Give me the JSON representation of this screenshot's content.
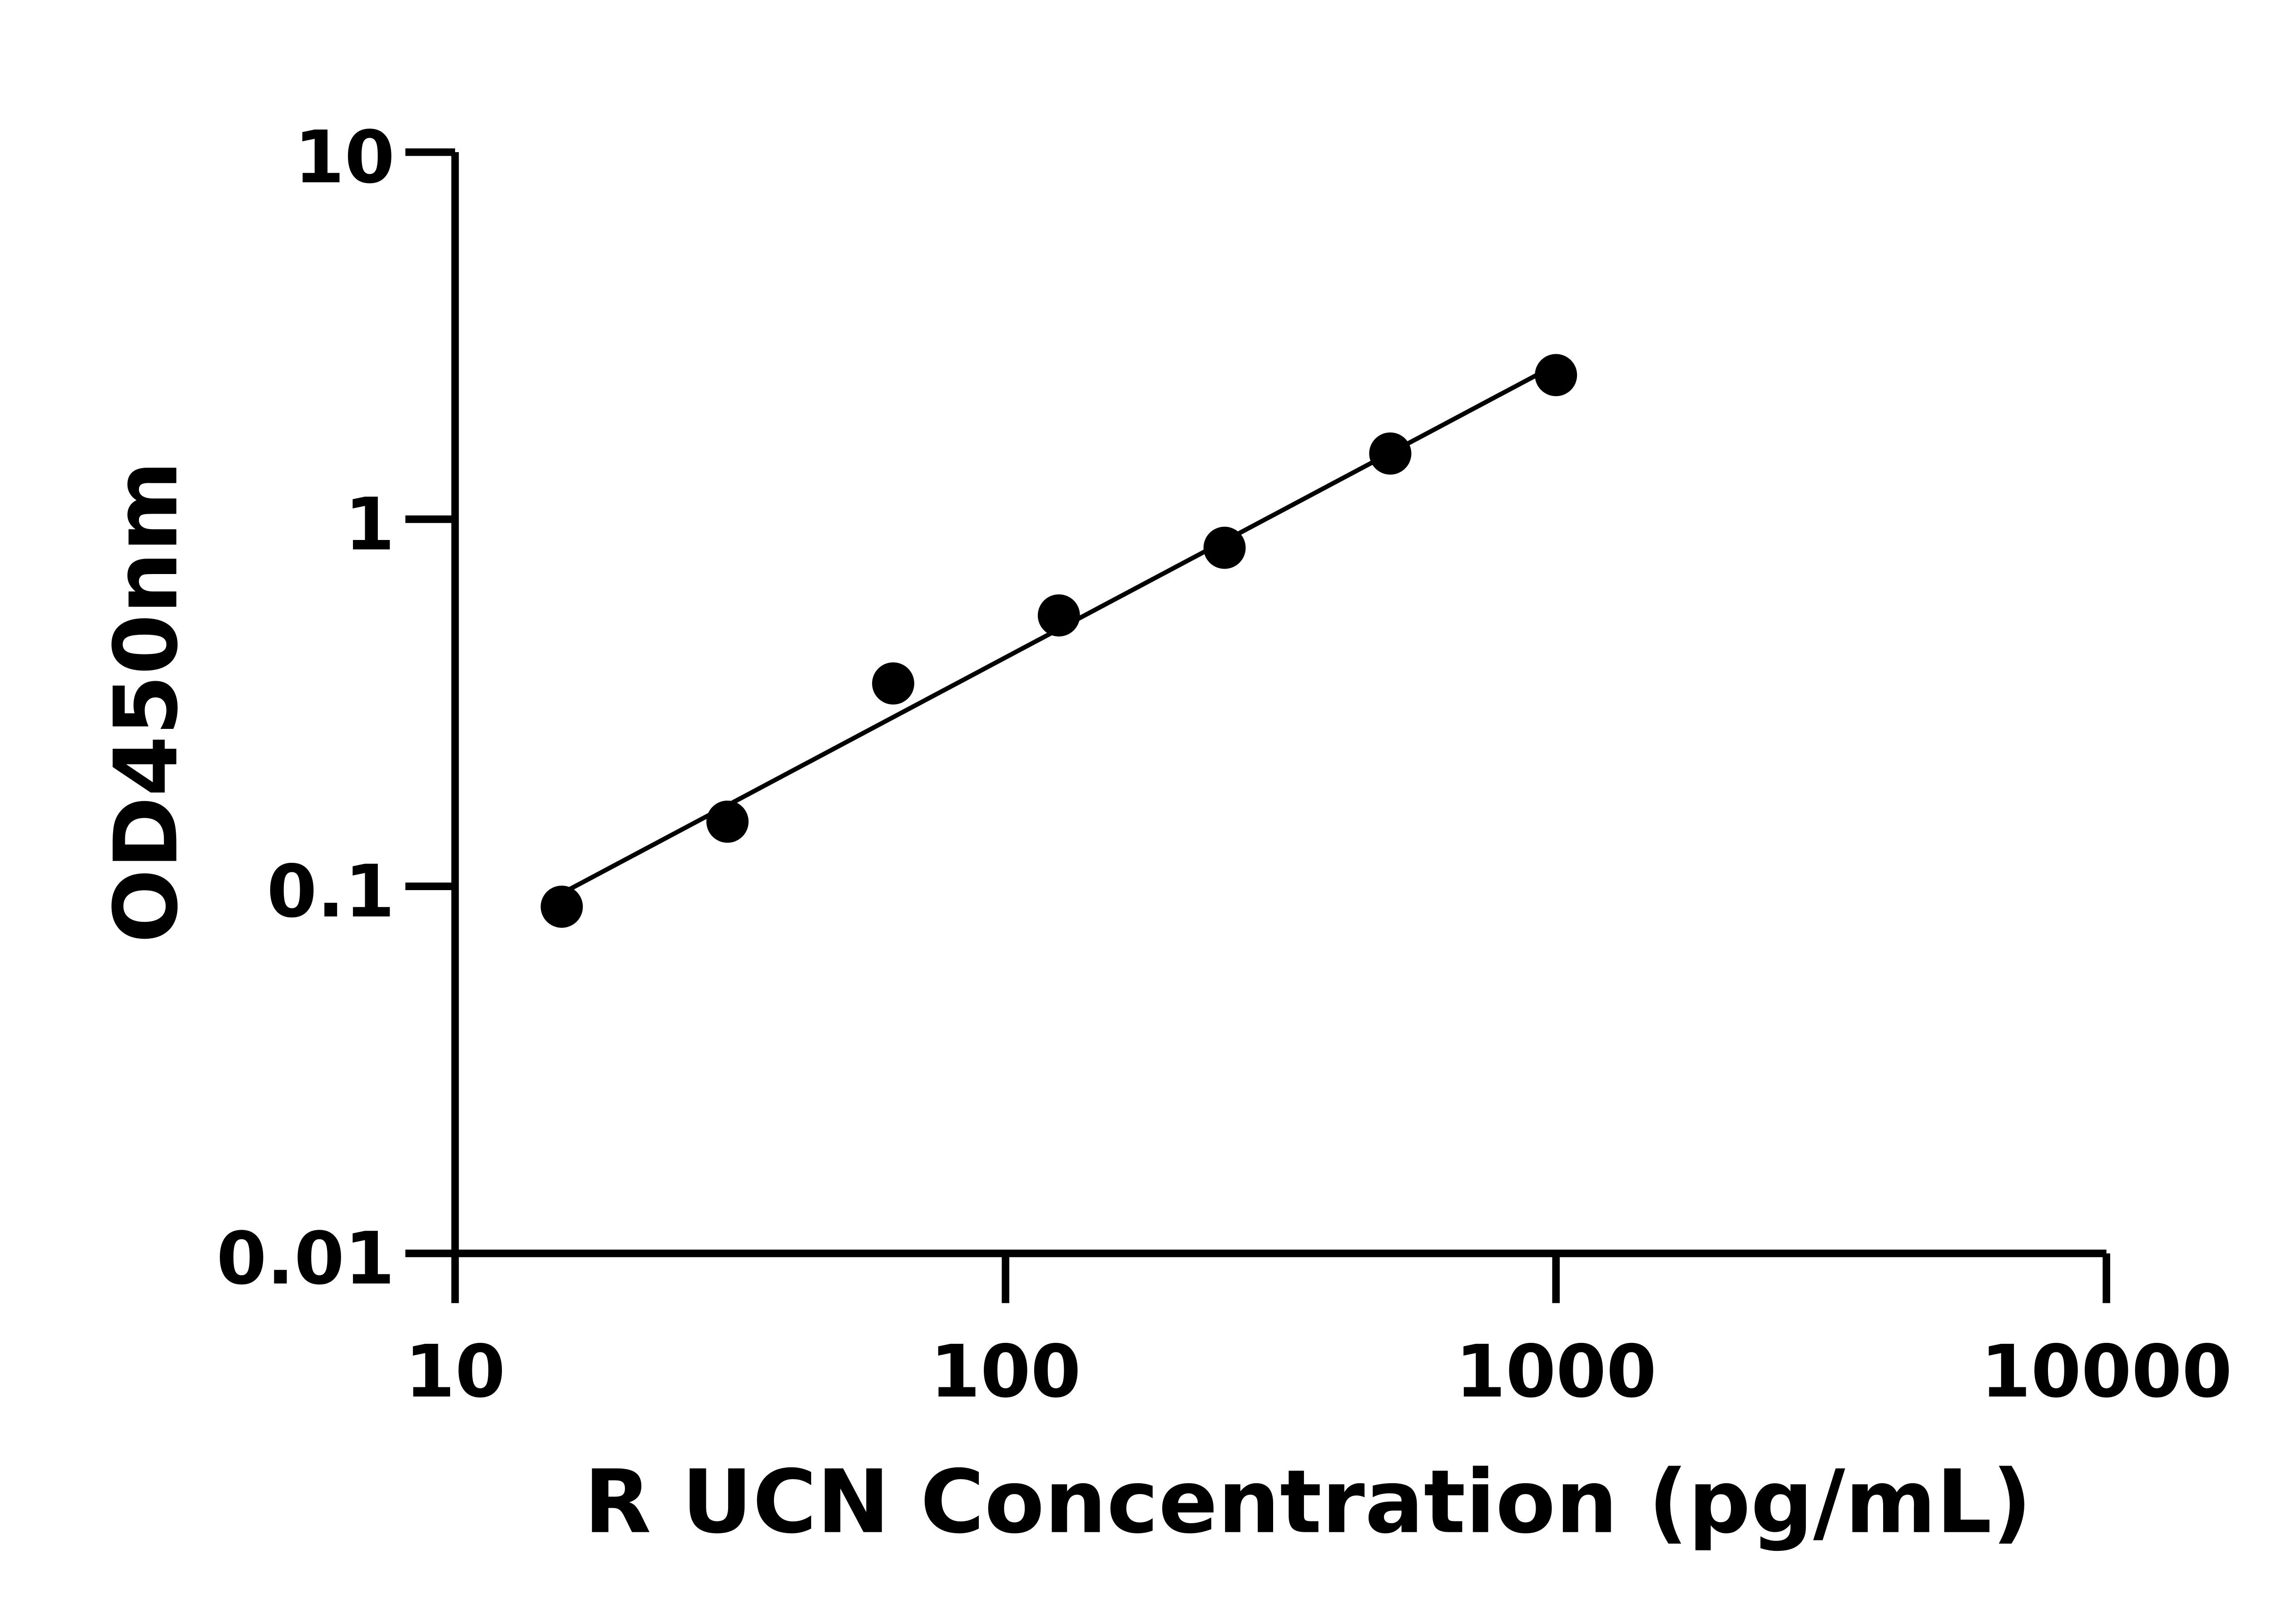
{
  "chart_data": {
    "type": "scatter",
    "title": "",
    "xlabel": "R UCN Concentration (pg/mL)",
    "ylabel": "OD450nm",
    "x_scale": "log",
    "y_scale": "log",
    "xlim": [
      10,
      10000
    ],
    "ylim": [
      0.01,
      10
    ],
    "x_ticks": [
      "10",
      "100",
      "1000",
      "10000"
    ],
    "y_ticks": [
      "0.01",
      "0.1",
      "1",
      "10"
    ],
    "grid": false,
    "legend": "none",
    "series": [
      {
        "x": [
          15.625,
          31.25,
          62.5,
          125,
          250,
          500,
          1000
        ],
        "y": [
          0.088,
          0.15,
          0.357,
          0.547,
          0.836,
          1.51,
          2.47
        ],
        "marker_color": "#000000",
        "fit": "log-log linear"
      }
    ]
  }
}
